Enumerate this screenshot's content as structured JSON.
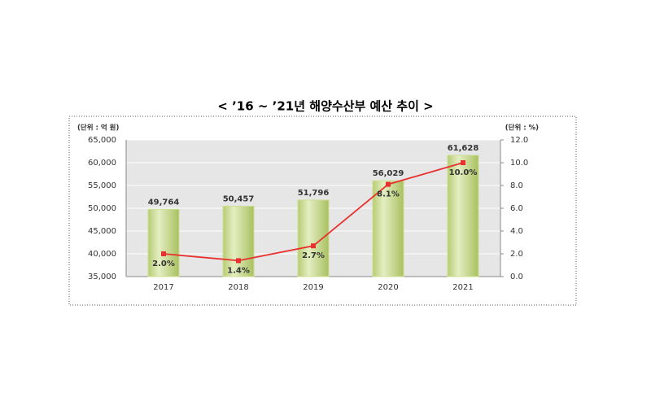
{
  "chart_data": {
    "type": "bar",
    "title": "< ’16 ~ ’21년 해양수산부 예산 추이 >",
    "y_unit_label": "(단위 : 억 원)",
    "y2_unit_label": "(단위 : %)",
    "categories": [
      "2017",
      "2018",
      "2019",
      "2020",
      "2021"
    ],
    "series": [
      {
        "type": "bar",
        "color": "#cddf94",
        "values": [
          49764,
          50457,
          51796,
          56029,
          61628
        ],
        "value_labels": [
          "49,764",
          "50,457",
          "51,796",
          "56,029",
          "61,628"
        ]
      },
      {
        "type": "line",
        "axis": "y2",
        "color": "#e8312f",
        "values": [
          2.0,
          1.4,
          2.7,
          8.1,
          10.0
        ],
        "value_labels": [
          "2.0%",
          "1.4%",
          "2.7%",
          "8.1%",
          "10.0%"
        ]
      }
    ],
    "ylim": [
      35000,
      65000
    ],
    "yticks": [
      {
        "value": 35000,
        "label": "35,000"
      },
      {
        "value": 40000,
        "label": "40,000"
      },
      {
        "value": 45000,
        "label": "45,000"
      },
      {
        "value": 50000,
        "label": "50,000"
      },
      {
        "value": 55000,
        "label": "55,000"
      },
      {
        "value": 60000,
        "label": "60,000"
      },
      {
        "value": 65000,
        "label": "65,000"
      }
    ],
    "y2lim": [
      0,
      12
    ],
    "y2ticks": [
      {
        "value": 0,
        "label": "0.0"
      },
      {
        "value": 2,
        "label": "2.0"
      },
      {
        "value": 4,
        "label": "4.0"
      },
      {
        "value": 6,
        "label": "6.0"
      },
      {
        "value": 8,
        "label": "8.0"
      },
      {
        "value": 10,
        "label": "10.0"
      },
      {
        "value": 12,
        "label": "12.0"
      }
    ],
    "grid": true
  }
}
